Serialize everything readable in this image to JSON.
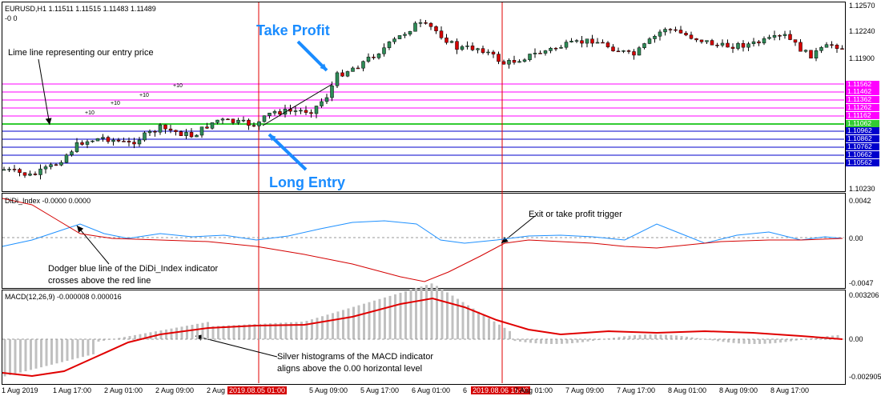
{
  "symbol_info": "EURUSD,H1  1.11511 1.11515 1.11483 1.11489",
  "sub_info": "-0   0",
  "indicator1_title": "DiDi_Index -0.0000 0.0000",
  "indicator2_title": "MACD(12,26,9) -0.000008 0.000016",
  "price_axis": [
    "1.12570",
    "1.12240",
    "1.11900",
    "1.10230"
  ],
  "level_tags": [
    {
      "text": "1.11562",
      "color": "#ff00ff"
    },
    {
      "text": "1.11462",
      "color": "#ff00ff"
    },
    {
      "text": "1.11362",
      "color": "#ff00ff"
    },
    {
      "text": "1.11262",
      "color": "#ff00ff"
    },
    {
      "text": "1.11162",
      "color": "#ff00ff"
    },
    {
      "text": "1.11062",
      "color": "#33cc33"
    },
    {
      "text": "1.10962",
      "color": "#0000cc"
    },
    {
      "text": "1.10862",
      "color": "#0000cc"
    },
    {
      "text": "1.10762",
      "color": "#0000cc"
    },
    {
      "text": "1.10662",
      "color": "#0000cc"
    },
    {
      "text": "1.10562",
      "color": "#0000cc"
    }
  ],
  "didi_axis": [
    "0.0042",
    "0.00",
    "-0.0047"
  ],
  "macd_axis": [
    "0.003206",
    "0.00",
    "-0.002905"
  ],
  "x_axis": [
    "1 Aug 2019",
    "1 Aug 17:00",
    "2 Aug 01:00",
    "2 Aug 09:00",
    "2 Aug",
    "5 Aug 09:00",
    "5 Aug 17:00",
    "6 Aug 01:00",
    "6",
    "7 Aug 01:00",
    "7 Aug 09:00",
    "7 Aug 17:00",
    "8 Aug 01:00",
    "8 Aug 09:00",
    "8 Aug 17:00"
  ],
  "x_highlights": [
    "2019.08.05 01:00",
    "2019.08.06 15:00"
  ],
  "annotations": {
    "take_profit": "Take Profit",
    "long_entry": "Long Entry",
    "lime_line": "Lime line representing our entry price",
    "dodger_line_1": "Dodger blue line of the DiDi_Index indicator",
    "dodger_line_2": "crosses above the red line",
    "exit_trigger": "Exit or take profit trigger",
    "silver_hist_1": "Silver histograms of the MACD indicator",
    "silver_hist_2": "aligns above the 0.00 horizontal level",
    "plus10": "+10"
  },
  "colors": {
    "bull": "#2e8b57",
    "bear": "#d40000",
    "vline": "#e00000",
    "didi_blue": "#1e90ff",
    "didi_red": "#d40000",
    "macd_hist": "#c0c0c0",
    "macd_signal": "#e00000",
    "level_upper": "#ff00ff",
    "level_entry": "#33cc33",
    "level_lower": "#0000cc"
  }
}
